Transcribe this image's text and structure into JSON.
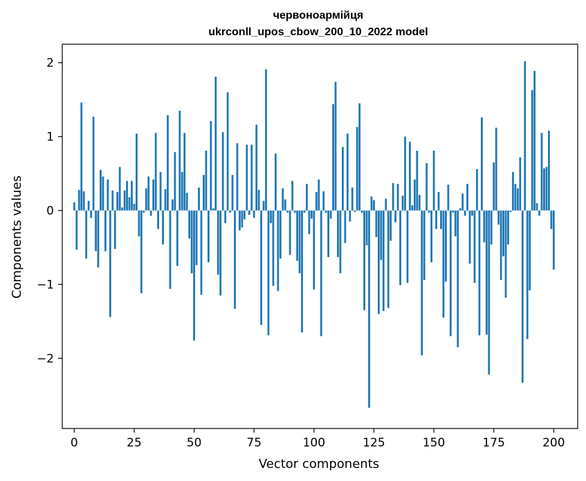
{
  "chart_data": {
    "type": "bar",
    "title_line1": "червоноармійця",
    "title_line2": "ukrconll_upos_cbow_200_10_2022 model",
    "xlabel": "Vector components",
    "ylabel": "Components values",
    "xlim": [
      -5,
      210
    ],
    "ylim": [
      -2.95,
      2.25
    ],
    "xticks": [
      0,
      25,
      50,
      75,
      100,
      125,
      150,
      175,
      200
    ],
    "xtick_labels": [
      "0",
      "25",
      "50",
      "75",
      "100",
      "125",
      "150",
      "175",
      "200"
    ],
    "yticks": [
      -2,
      -1,
      0,
      1,
      2
    ],
    "ytick_labels": [
      "−2",
      "−1",
      "0",
      "1",
      "2"
    ],
    "bar_color": "#1f77b4",
    "grid": false,
    "values": [
      0.11,
      -0.53,
      0.28,
      1.46,
      0.26,
      -0.65,
      0.13,
      -0.1,
      1.27,
      -0.55,
      -0.77,
      0.55,
      0.46,
      -0.55,
      0.42,
      -1.44,
      0.27,
      -0.52,
      0.25,
      0.59,
      0.04,
      0.27,
      0.4,
      0.18,
      0.4,
      0.09,
      1.04,
      -0.35,
      -1.12,
      -0.03,
      0.3,
      0.46,
      -0.07,
      0.42,
      1.05,
      -0.25,
      0.52,
      -0.46,
      0.29,
      1.29,
      -1.06,
      0.15,
      0.79,
      -0.75,
      1.35,
      0.52,
      1.05,
      0.24,
      -0.38,
      -0.85,
      -1.76,
      -0.74,
      0.31,
      -1.14,
      0.48,
      0.81,
      -0.7,
      1.21,
      0.03,
      1.81,
      -0.87,
      -1.15,
      1.06,
      -0.17,
      1.6,
      -0.03,
      0.48,
      -1.33,
      0.91,
      -0.27,
      -0.23,
      -0.12,
      0.89,
      -0.06,
      0.89,
      -0.1,
      1.16,
      0.28,
      -1.55,
      0.13,
      1.91,
      -1.69,
      -0.17,
      -1.02,
      0.77,
      -1.09,
      -0.65,
      0.3,
      0.15,
      -0.03,
      -0.6,
      0.4,
      -0.03,
      -0.68,
      -0.85,
      -1.65,
      -0.03,
      0.36,
      -0.32,
      -0.11,
      -1.07,
      0.25,
      0.42,
      -1.7,
      0.26,
      -0.03,
      -0.63,
      -0.11,
      1.44,
      1.74,
      -0.63,
      -0.85,
      0.86,
      -0.44,
      1.04,
      -0.15,
      0.31,
      -0.02,
      1.13,
      1.45,
      -0.03,
      -1.35,
      -0.47,
      -2.67,
      0.19,
      0.14,
      -0.36,
      -1.4,
      -0.67,
      -1.36,
      0.16,
      -1.32,
      -0.41,
      0.37,
      -0.16,
      0.36,
      -1.01,
      0.2,
      1.0,
      -0.98,
      0.93,
      0.07,
      0.42,
      0.81,
      0.21,
      -1.96,
      -0.94,
      0.64,
      -0.03,
      -0.7,
      0.81,
      -0.25,
      0.25,
      -0.25,
      -1.45,
      -0.96,
      0.35,
      -1.7,
      -0.03,
      -0.35,
      -1.85,
      0.03,
      0.23,
      -0.07,
      0.36,
      -0.72,
      -0.07,
      -0.98,
      0.56,
      -1.69,
      1.26,
      -0.43,
      -1.68,
      -2.22,
      -0.46,
      0.65,
      1.12,
      -0.19,
      -0.94,
      -0.62,
      -1.18,
      -0.46,
      -0.02,
      0.52,
      0.36,
      0.3,
      0.72,
      -2.33,
      2.02,
      -1.74,
      -1.08,
      1.63,
      1.89,
      0.1,
      -0.07,
      1.05,
      0.57,
      0.59,
      1.08,
      -0.25,
      -0.8
    ]
  }
}
